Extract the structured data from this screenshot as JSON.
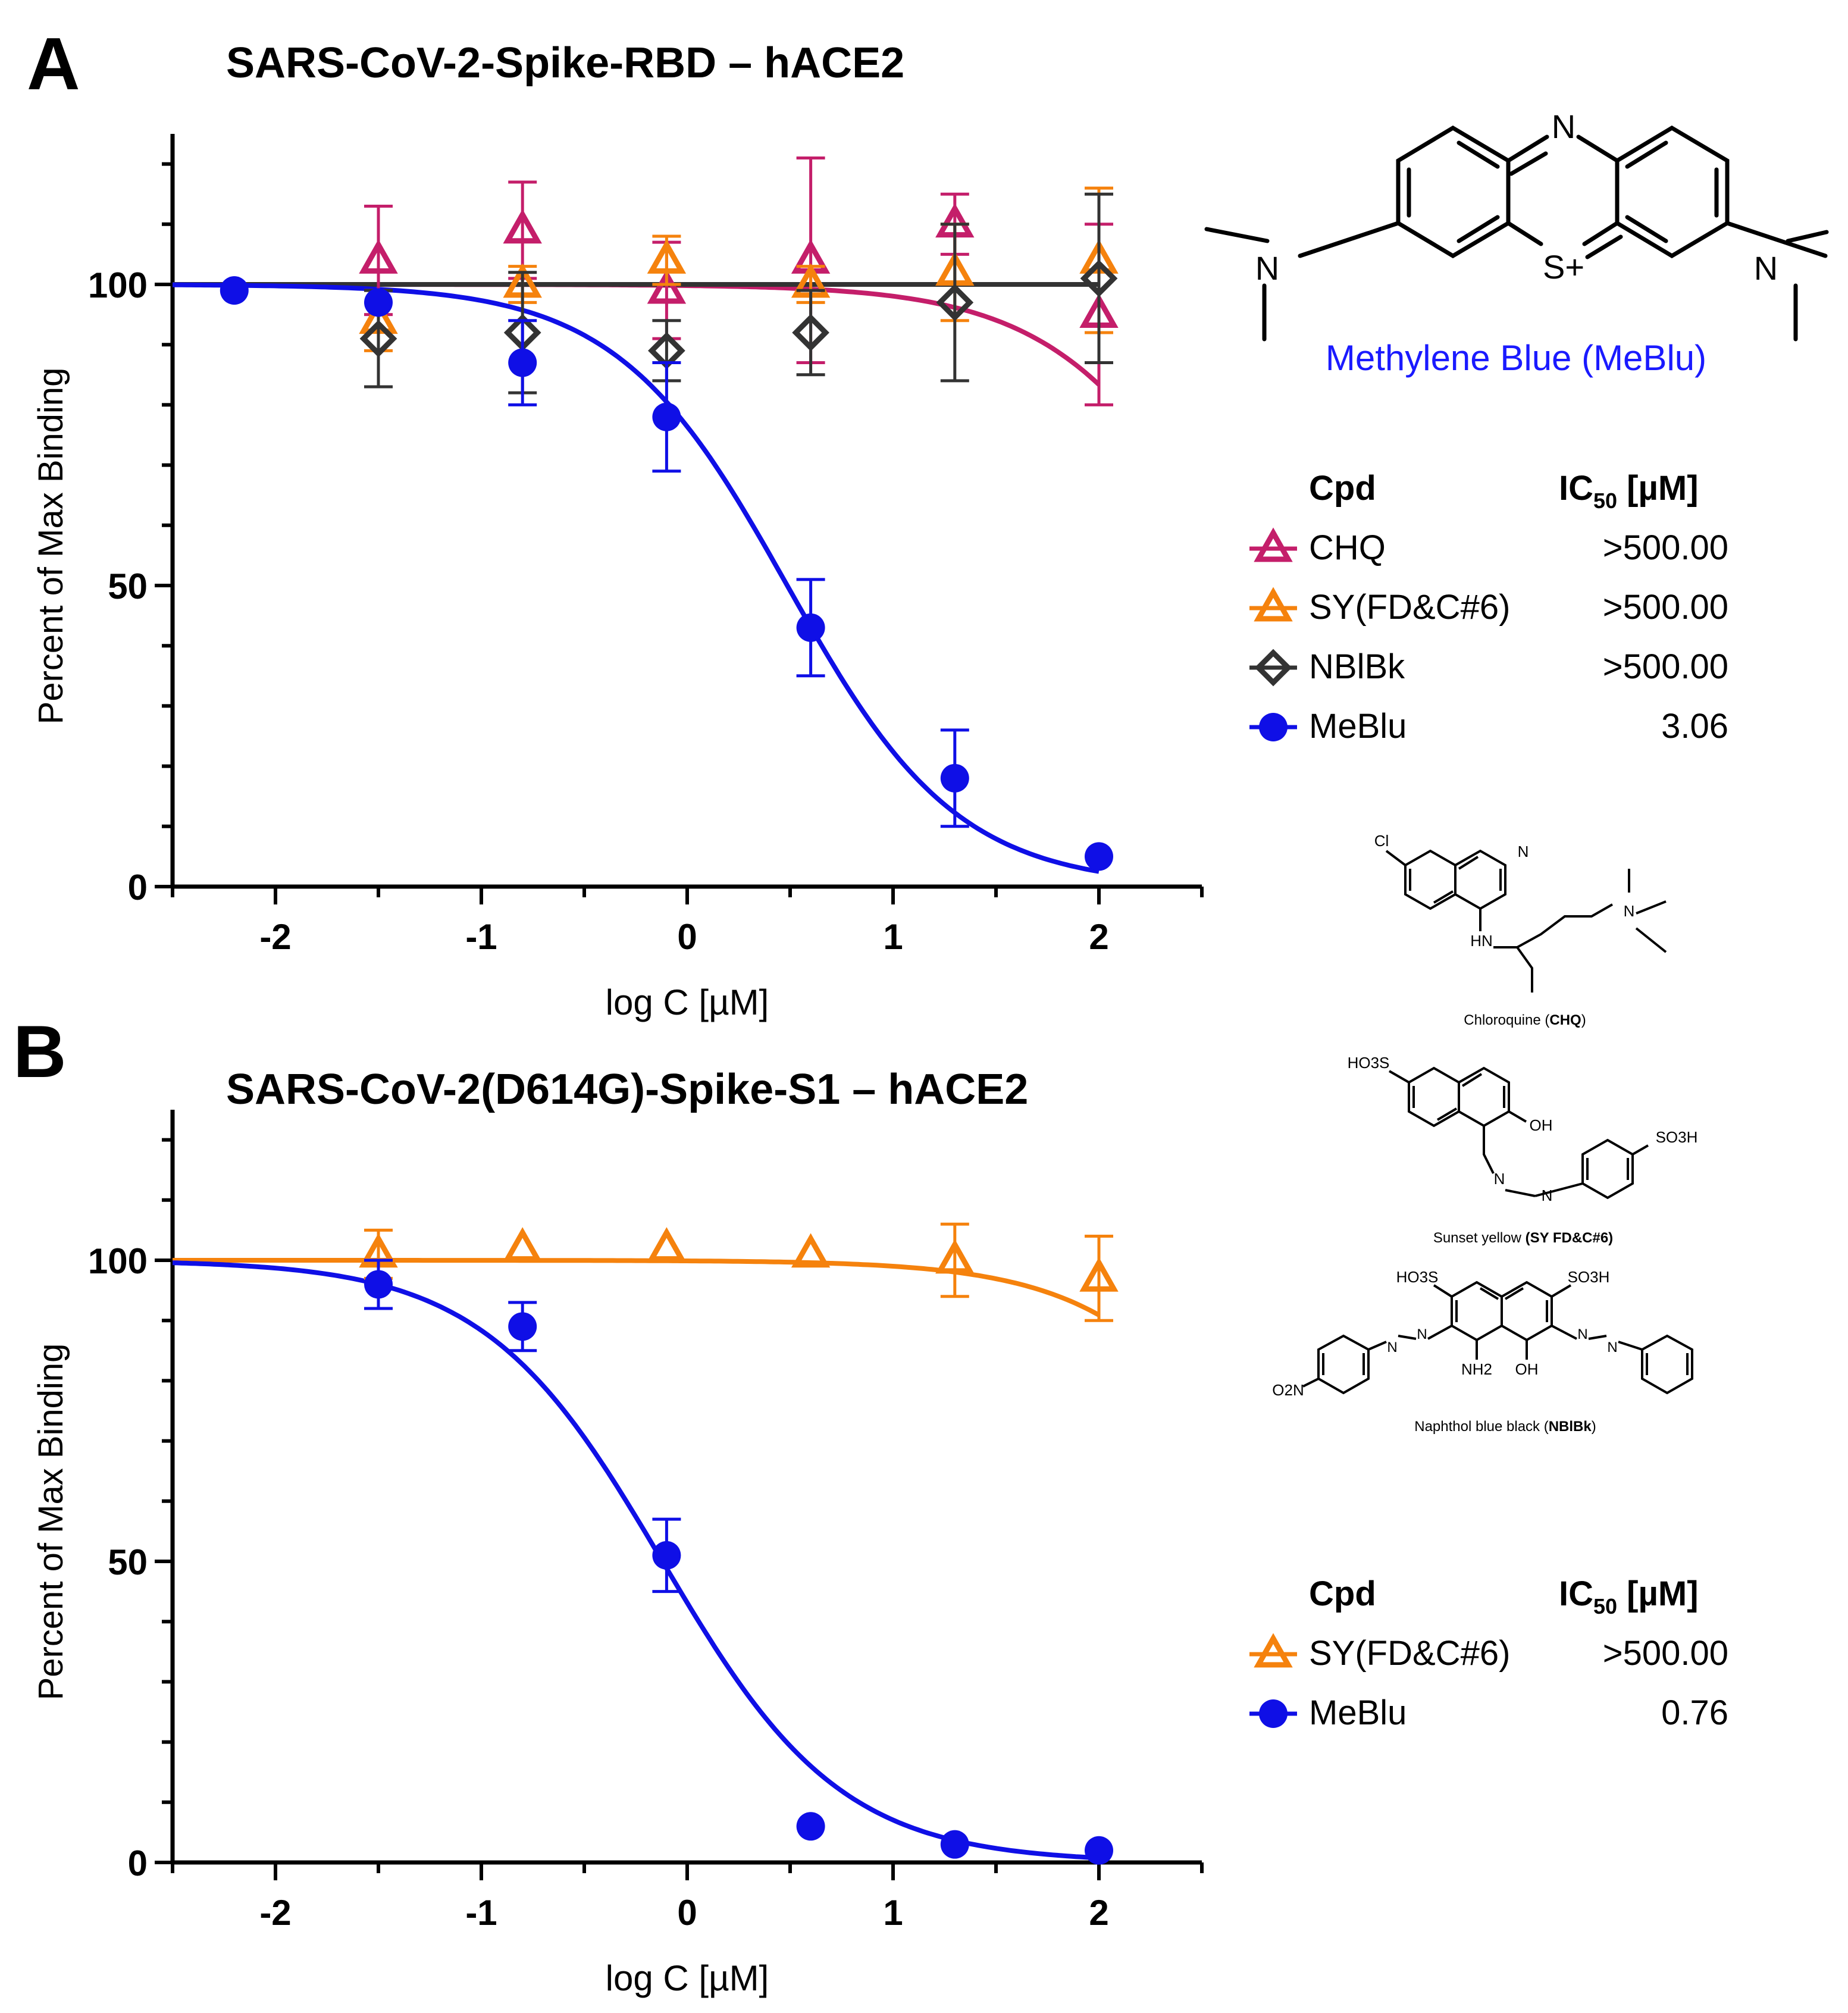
{
  "colors": {
    "chq": "#c41e6a",
    "sy": "#f5820d",
    "nblbk": "#333333",
    "meblu": "#0f0fe6",
    "axis": "#000000",
    "caption_blue": "#1a1aff"
  },
  "panels": [
    {
      "letter": "A",
      "title": "SARS-CoV-2-Spike-RBD – hACE2",
      "xlabel": "log C  [µM]",
      "ylabel": "Percent of Max Binding",
      "legend": {
        "header_cpd": "Cpd",
        "header_ic50_main": "IC",
        "header_ic50_sub": "50",
        "header_ic50_unit": " [µM]",
        "rows": [
          {
            "name": "CHQ",
            "value": ">500.00",
            "color_key": "chq",
            "marker": "triangle"
          },
          {
            "name": "SY(FD&C#6)",
            "value": ">500.00",
            "color_key": "sy",
            "marker": "triangle"
          },
          {
            "name": "NBlBk",
            "value": ">500.00",
            "color_key": "nblbk",
            "marker": "diamond"
          },
          {
            "name": "MeBlu",
            "value": "3.06",
            "color_key": "meblu",
            "marker": "circle"
          }
        ]
      }
    },
    {
      "letter": "B",
      "title": "SARS-CoV-2(D614G)-Spike-S1 – hACE2",
      "xlabel": "log C [µM]",
      "ylabel": "Percent of Max Binding",
      "legend": {
        "header_cpd": "Cpd",
        "header_ic50_main": "IC",
        "header_ic50_sub": "50",
        "header_ic50_unit": " [µM]",
        "rows": [
          {
            "name": "SY(FD&C#6)",
            "value": ">500.00",
            "color_key": "sy",
            "marker": "triangle"
          },
          {
            "name": "MeBlu",
            "value": "0.76",
            "color_key": "meblu",
            "marker": "circle"
          }
        ]
      }
    }
  ],
  "structures": {
    "meblu_caption": "Methylene Blue (MeBlu)",
    "meblu_labels": {
      "n_top": "N",
      "s_plus": "S+",
      "n_left": "N",
      "n_right": "N"
    },
    "chq": {
      "caption_prefix": "Chloroquine (",
      "caption_abbrev": "CHQ",
      "caption_suffix": ")",
      "labels": {
        "cl": "Cl",
        "n_ring": "N",
        "hn": "HN",
        "n_amine": "N"
      }
    },
    "sy": {
      "caption_prefix": "Sunset yellow ",
      "caption_abbrev": "(SY FD&C#6)",
      "labels": {
        "so3h_left": "HO3S",
        "oh": "OH",
        "n1": "N",
        "n2": "N",
        "so3h_right": "SO3H"
      }
    },
    "nblbk": {
      "caption_prefix": "Naphthol blue black (",
      "caption_abbrev": "NBlBk",
      "caption_suffix": ")",
      "labels": {
        "so3h_left": "HO3S",
        "so3h_right": "SO3H",
        "nh2": "NH2",
        "oh": "OH",
        "o2n": "O2N",
        "n1": "N",
        "n2": "N",
        "n3": "N",
        "n4": "N"
      }
    }
  },
  "chart_data": [
    {
      "type": "scatter",
      "panel": "A",
      "title": "SARS-CoV-2-Spike-RBD – hACE2",
      "xlabel": "log C  [µM]",
      "ylabel": "Percent of Max Binding",
      "xlim": [
        -2.5,
        2.5
      ],
      "ylim": [
        0,
        125
      ],
      "x_ticks": [
        -2,
        -1,
        0,
        1,
        2
      ],
      "y_ticks": [
        0,
        50,
        100
      ],
      "grid": false,
      "series": [
        {
          "name": "CHQ",
          "color_key": "chq",
          "marker": "triangle",
          "x": [
            -1.5,
            -0.8,
            -0.1,
            0.6,
            1.3,
            2.0
          ],
          "y": [
            104,
            109,
            99,
            104,
            110,
            95
          ],
          "err": [
            9,
            8,
            8,
            17,
            5,
            15
          ],
          "fit": {
            "kind": "flat_decline",
            "top": 100,
            "ic50_log": 2.7,
            "hill": 1.0
          }
        },
        {
          "name": "SY(FD&C#6)",
          "color_key": "sy",
          "marker": "triangle",
          "x": [
            -1.5,
            -0.8,
            -0.1,
            0.6,
            1.3,
            2.0
          ],
          "y": [
            94,
            100,
            104,
            100,
            102,
            104
          ],
          "err": [
            5,
            3,
            4,
            3,
            8,
            12
          ],
          "fit": {
            "kind": "flat",
            "top": 100
          }
        },
        {
          "name": "NBlBk",
          "color_key": "nblbk",
          "marker": "diamond",
          "x": [
            -1.5,
            -0.8,
            -0.1,
            0.6,
            1.3,
            2.0
          ],
          "y": [
            91,
            92,
            89,
            92,
            97,
            101
          ],
          "err": [
            8,
            10,
            5,
            7,
            13,
            14
          ],
          "fit": {
            "kind": "flat",
            "top": 100
          }
        },
        {
          "name": "MeBlu",
          "color_key": "meblu",
          "marker": "circle",
          "x": [
            -2.2,
            -1.5,
            -0.8,
            -0.1,
            0.6,
            1.3,
            2.0
          ],
          "y": [
            99,
            97,
            87,
            78,
            43,
            18,
            5
          ],
          "err": [
            0,
            0,
            7,
            9,
            8,
            8,
            0
          ],
          "fit": {
            "kind": "sigmoid",
            "top": 100,
            "bottom": 0,
            "ic50_log": 0.486,
            "hill": 1.05
          }
        }
      ]
    },
    {
      "type": "scatter",
      "panel": "B",
      "title": "SARS-CoV-2(D614G)-Spike-S1 – hACE2",
      "xlabel": "log C [µM]",
      "ylabel": "Percent of Max Binding",
      "xlim": [
        -2.5,
        2.5
      ],
      "ylim": [
        0,
        125
      ],
      "x_ticks": [
        -2,
        -1,
        0,
        1,
        2
      ],
      "y_ticks": [
        0,
        50,
        100
      ],
      "grid": false,
      "series": [
        {
          "name": "SY(FD&C#6)",
          "color_key": "sy",
          "marker": "triangle",
          "x": [
            -1.5,
            -0.8,
            -0.1,
            0.6,
            1.3,
            2.0
          ],
          "y": [
            101,
            102,
            102,
            101,
            100,
            97
          ],
          "err": [
            4,
            0,
            0,
            0,
            6,
            7
          ],
          "fit": {
            "kind": "flat_decline",
            "top": 100,
            "ic50_log": 3.0,
            "hill": 1.0
          }
        },
        {
          "name": "MeBlu",
          "color_key": "meblu",
          "marker": "circle",
          "x": [
            -1.5,
            -0.8,
            -0.1,
            0.6,
            1.3,
            2.0
          ],
          "y": [
            96,
            89,
            51,
            6,
            3,
            2
          ],
          "err": [
            4,
            4,
            6,
            0,
            0,
            0
          ],
          "fit": {
            "kind": "sigmoid",
            "top": 100,
            "bottom": 0,
            "ic50_log": -0.12,
            "hill": 1.0
          }
        }
      ]
    }
  ]
}
